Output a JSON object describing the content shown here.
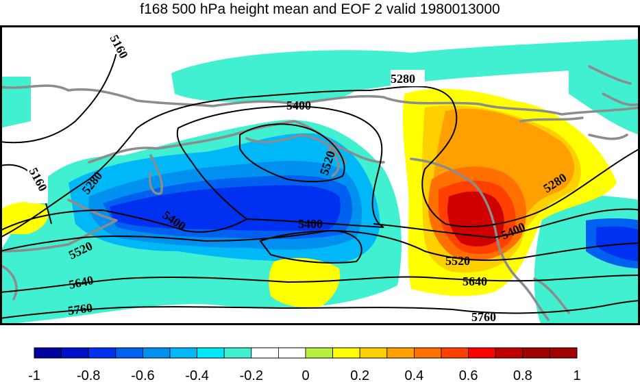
{
  "title": "f168 500 hPa height mean and EOF 2 valid 1980013000",
  "contour_labels": [
    "5160",
    "5280",
    "5400",
    "5520",
    "5640",
    "5760"
  ],
  "colorbar": {
    "tick_labels": [
      "-1",
      "-0.8",
      "-0.6",
      "-0.4",
      "-0.2",
      "0",
      "0.2",
      "0.4",
      "0.6",
      "0.8",
      "1"
    ],
    "colors": [
      "#0000a0",
      "#0010c8",
      "#0030f0",
      "#0060f0",
      "#0090f0",
      "#00b8f8",
      "#00e8f8",
      "#40f0d0",
      "#ffffff",
      "#ffffff",
      "#b8f040",
      "#ffff00",
      "#ffd000",
      "#ffa000",
      "#ff7000",
      "#ff4000",
      "#ff0000",
      "#c00000",
      "#a00000",
      "#a00000"
    ]
  },
  "colors": {
    "coastline": "#8c8c8c",
    "contour": "#000000",
    "frame": "#000000"
  }
}
